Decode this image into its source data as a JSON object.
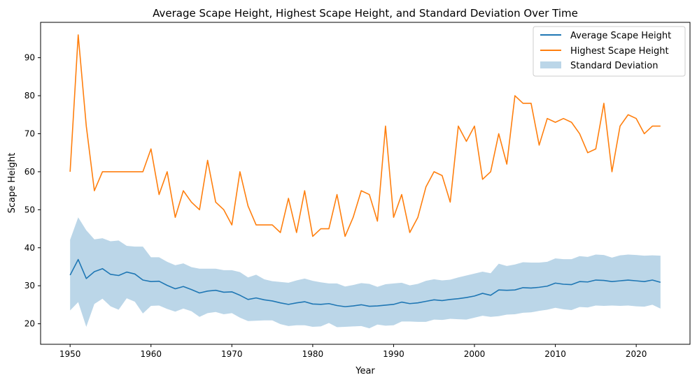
{
  "chart_data": {
    "type": "line",
    "title": "Average Scape Height, Highest Scape Height, and Standard Deviation Over Time",
    "xlabel": "Year",
    "ylabel": "Scape Height",
    "xlim": [
      1946.35,
      2026.65
    ],
    "ylim": [
      14.6,
      99.3
    ],
    "xticks": [
      1950,
      1960,
      1970,
      1980,
      1990,
      2000,
      2010,
      2020
    ],
    "yticks": [
      20,
      30,
      40,
      50,
      60,
      70,
      80,
      90
    ],
    "grid": false,
    "legend_position": "top-right",
    "colors": {
      "average": "#1f77b4",
      "highest": "#ff7f0e",
      "std_fill": "#1f77b4"
    },
    "x": [
      1950,
      1951,
      1952,
      1953,
      1954,
      1955,
      1956,
      1957,
      1958,
      1959,
      1960,
      1961,
      1962,
      1963,
      1964,
      1965,
      1966,
      1967,
      1968,
      1969,
      1970,
      1971,
      1972,
      1973,
      1974,
      1975,
      1976,
      1977,
      1978,
      1979,
      1980,
      1981,
      1982,
      1983,
      1984,
      1985,
      1986,
      1987,
      1988,
      1989,
      1990,
      1991,
      1992,
      1993,
      1994,
      1995,
      1996,
      1997,
      1998,
      1999,
      2000,
      2001,
      2002,
      2003,
      2004,
      2005,
      2006,
      2007,
      2008,
      2009,
      2010,
      2011,
      2012,
      2013,
      2014,
      2015,
      2016,
      2017,
      2018,
      2019,
      2020,
      2021,
      2022,
      2023
    ],
    "series": [
      {
        "name": "Average Scape Height",
        "values": [
          32.8,
          36.9,
          31.9,
          33.7,
          34.5,
          33.0,
          32.7,
          33.6,
          33.1,
          31.5,
          31.1,
          31.2,
          30.1,
          29.2,
          29.8,
          29.0,
          28.1,
          28.6,
          28.8,
          28.3,
          28.4,
          27.5,
          26.4,
          26.8,
          26.3,
          26.0,
          25.5,
          25.1,
          25.5,
          25.8,
          25.2,
          25.1,
          25.3,
          24.8,
          24.5,
          24.7,
          25.0,
          24.6,
          24.7,
          24.9,
          25.1,
          25.7,
          25.3,
          25.5,
          25.9,
          26.3,
          26.1,
          26.4,
          26.6,
          26.9,
          27.3,
          28.0,
          27.5,
          28.9,
          28.8,
          28.9,
          29.5,
          29.4,
          29.6,
          29.9,
          30.7,
          30.4,
          30.3,
          31.1,
          31.0,
          31.5,
          31.4,
          31.1,
          31.3,
          31.5,
          31.3,
          31.1,
          31.5,
          30.9
        ]
      },
      {
        "name": "Highest Scape Height",
        "values": [
          60,
          96,
          72,
          55,
          60,
          60,
          60,
          60,
          60,
          60,
          66,
          54,
          60,
          48,
          55,
          52,
          50,
          63,
          52,
          50,
          46,
          60,
          51,
          46,
          46,
          46,
          44,
          53,
          44,
          55,
          43,
          45,
          45,
          54,
          43,
          48,
          55,
          54,
          47,
          72,
          48,
          54,
          44,
          48,
          56,
          60,
          59,
          52,
          72,
          68,
          72,
          58,
          60,
          70,
          62,
          80,
          78,
          78,
          67,
          74,
          73,
          74,
          73,
          70,
          65,
          66,
          78,
          60,
          72,
          75,
          74,
          70,
          72,
          72
        ]
      },
      {
        "name": "Standard Deviation",
        "lower": [
          23.5,
          25.7,
          19.2,
          25.2,
          26.6,
          24.6,
          23.7,
          26.7,
          25.8,
          22.7,
          24.7,
          24.8,
          23.9,
          23.2,
          24.0,
          23.3,
          21.8,
          22.8,
          23.1,
          22.5,
          22.8,
          21.6,
          20.7,
          20.8,
          20.9,
          20.9,
          19.9,
          19.4,
          19.6,
          19.6,
          19.2,
          19.3,
          20.2,
          19.1,
          19.2,
          19.3,
          19.4,
          18.8,
          19.8,
          19.5,
          19.6,
          20.6,
          20.6,
          20.5,
          20.5,
          21.1,
          21.0,
          21.3,
          21.2,
          21.1,
          21.6,
          22.1,
          21.8,
          22.0,
          22.4,
          22.5,
          22.9,
          23.0,
          23.4,
          23.7,
          24.2,
          23.8,
          23.6,
          24.4,
          24.3,
          24.8,
          24.7,
          24.8,
          24.7,
          24.8,
          24.6,
          24.5,
          25.0,
          24.0
        ],
        "upper": [
          42.1,
          48.0,
          44.6,
          42.2,
          42.5,
          41.7,
          41.9,
          40.5,
          40.3,
          40.3,
          37.5,
          37.5,
          36.3,
          35.4,
          35.9,
          34.9,
          34.5,
          34.5,
          34.5,
          34.1,
          34.1,
          33.6,
          32.2,
          32.9,
          31.7,
          31.2,
          31.0,
          30.8,
          31.4,
          31.9,
          31.3,
          30.9,
          30.6,
          30.6,
          29.8,
          30.2,
          30.7,
          30.5,
          29.7,
          30.4,
          30.6,
          30.8,
          30.1,
          30.5,
          31.3,
          31.7,
          31.4,
          31.6,
          32.2,
          32.7,
          33.2,
          33.7,
          33.3,
          35.8,
          35.2,
          35.6,
          36.2,
          36.1,
          36.1,
          36.3,
          37.2,
          37.0,
          37.0,
          37.8,
          37.6,
          38.2,
          38.1,
          37.4,
          38.0,
          38.2,
          38.1,
          37.9,
          38.0,
          37.9
        ]
      }
    ]
  }
}
